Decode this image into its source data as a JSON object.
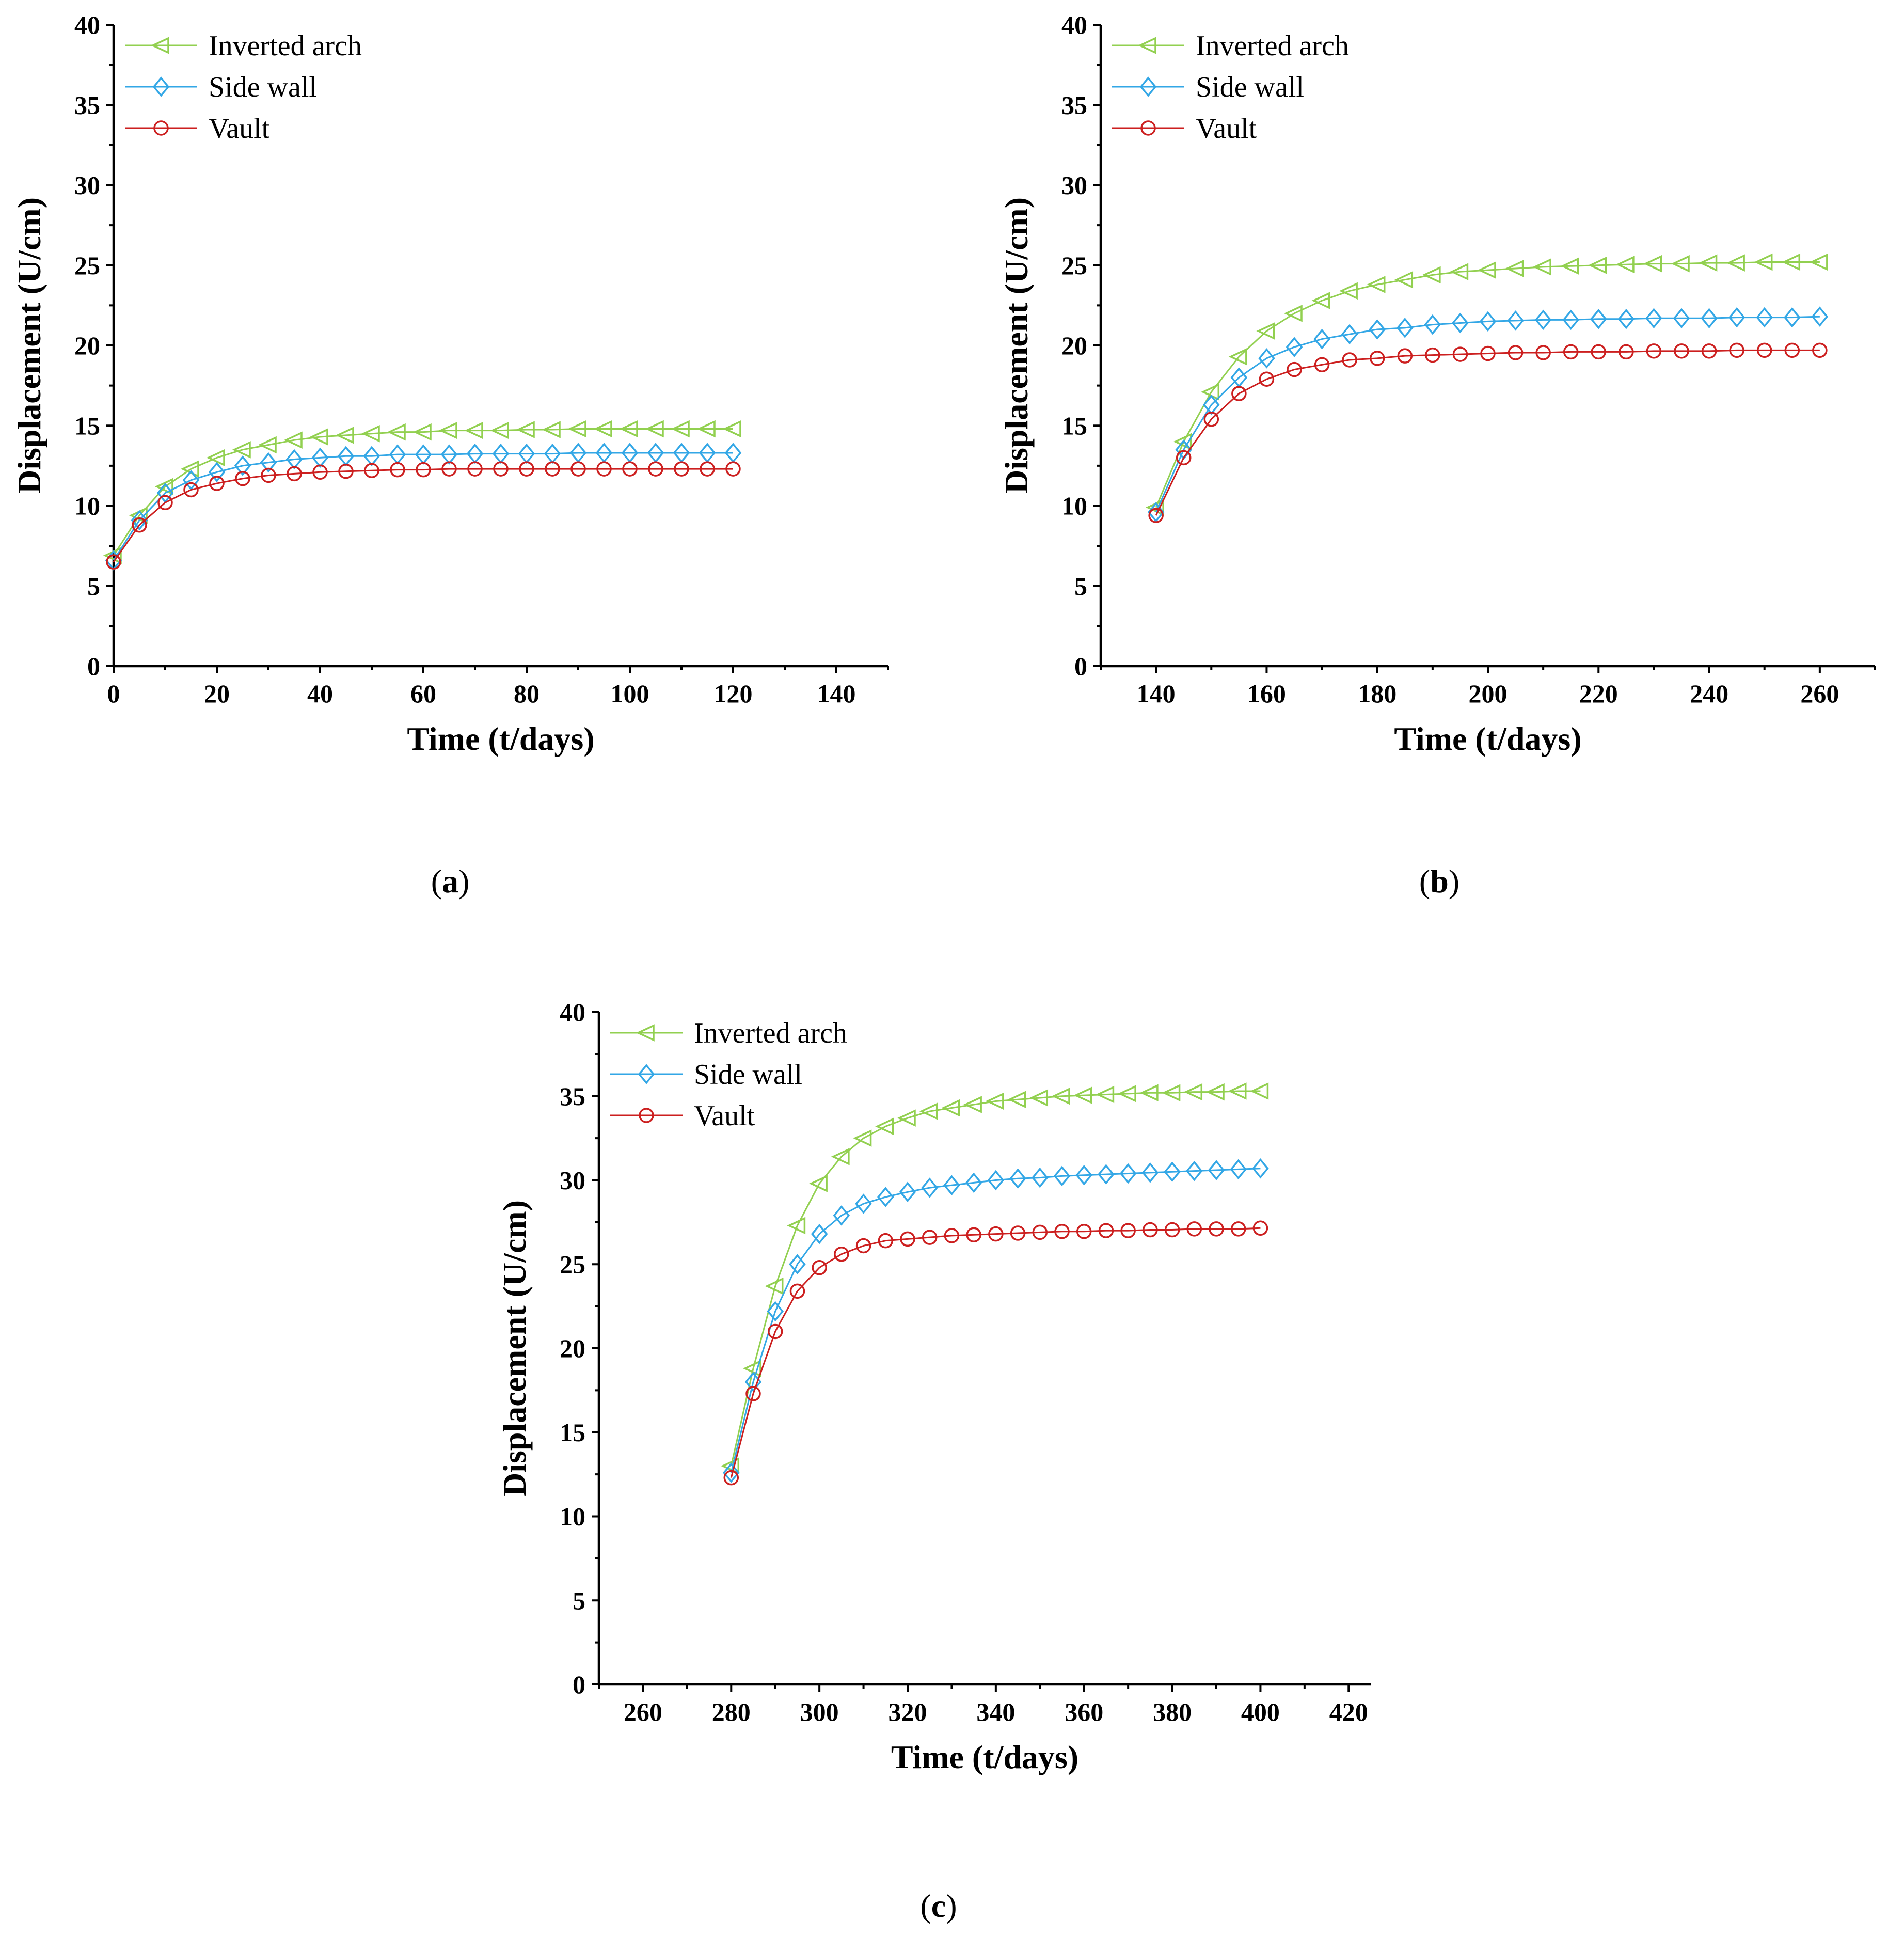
{
  "figure": {
    "labels": [
      "a",
      "b",
      "c"
    ]
  },
  "chart_data": [
    {
      "type": "line",
      "panel_label": "a",
      "xlabel": "Time (t/days)",
      "ylabel": "Displacement (U/cm)",
      "xlim": [
        0,
        150
      ],
      "ylim": [
        0,
        40
      ],
      "xticks": [
        "0",
        "20",
        "40",
        "60",
        "80",
        "100",
        "120",
        "140"
      ],
      "yticks": [
        "0",
        "5",
        "10",
        "15",
        "20",
        "25",
        "30",
        "35",
        "40"
      ],
      "legend_position": "top-left",
      "x": [
        0,
        5,
        10,
        15,
        20,
        25,
        30,
        35,
        40,
        45,
        50,
        55,
        60,
        65,
        70,
        75,
        80,
        85,
        90,
        95,
        100,
        105,
        110,
        115,
        120
      ],
      "series": [
        {
          "name": "Inverted arch",
          "color": "#92d050",
          "marker": "triangle-left",
          "values": [
            6.9,
            9.4,
            11.2,
            12.3,
            13.0,
            13.5,
            13.8,
            14.1,
            14.3,
            14.4,
            14.5,
            14.6,
            14.6,
            14.7,
            14.7,
            14.7,
            14.75,
            14.75,
            14.8,
            14.8,
            14.8,
            14.8,
            14.8,
            14.8,
            14.8
          ]
        },
        {
          "name": "Side wall",
          "color": "#33a7e6",
          "marker": "diamond",
          "values": [
            6.6,
            9.1,
            10.8,
            11.6,
            12.1,
            12.5,
            12.7,
            12.9,
            13.0,
            13.1,
            13.1,
            13.2,
            13.2,
            13.2,
            13.25,
            13.25,
            13.25,
            13.25,
            13.3,
            13.3,
            13.3,
            13.3,
            13.3,
            13.3,
            13.3
          ]
        },
        {
          "name": "Vault",
          "color": "#cc1f1f",
          "marker": "circle",
          "values": [
            6.5,
            8.8,
            10.2,
            11.0,
            11.4,
            11.7,
            11.9,
            12.0,
            12.1,
            12.15,
            12.2,
            12.25,
            12.25,
            12.3,
            12.3,
            12.3,
            12.3,
            12.3,
            12.3,
            12.3,
            12.3,
            12.3,
            12.3,
            12.3,
            12.3
          ]
        }
      ]
    },
    {
      "type": "line",
      "panel_label": "b",
      "xlabel": "Time (t/days)",
      "ylabel": "Displacement (U/cm)",
      "xlim": [
        130,
        270
      ],
      "ylim": [
        0,
        40
      ],
      "xticks": [
        "140",
        "160",
        "180",
        "200",
        "220",
        "240",
        "260"
      ],
      "yticks": [
        "0",
        "5",
        "10",
        "15",
        "20",
        "25",
        "30",
        "35",
        "40"
      ],
      "legend_position": "top-left",
      "x": [
        140,
        145,
        150,
        155,
        160,
        165,
        170,
        175,
        180,
        185,
        190,
        195,
        200,
        205,
        210,
        215,
        220,
        225,
        230,
        235,
        240,
        245,
        250,
        255,
        260
      ],
      "series": [
        {
          "name": "Inverted arch",
          "color": "#92d050",
          "marker": "triangle-left",
          "values": [
            9.9,
            14.0,
            17.1,
            19.3,
            20.9,
            22.0,
            22.8,
            23.4,
            23.8,
            24.1,
            24.4,
            24.6,
            24.7,
            24.8,
            24.9,
            24.95,
            25.0,
            25.05,
            25.1,
            25.1,
            25.15,
            25.15,
            25.2,
            25.2,
            25.2
          ]
        },
        {
          "name": "Side wall",
          "color": "#33a7e6",
          "marker": "diamond",
          "values": [
            9.6,
            13.5,
            16.3,
            18.0,
            19.2,
            19.9,
            20.4,
            20.7,
            21.0,
            21.1,
            21.3,
            21.4,
            21.5,
            21.55,
            21.6,
            21.6,
            21.65,
            21.65,
            21.7,
            21.7,
            21.7,
            21.75,
            21.75,
            21.75,
            21.8
          ]
        },
        {
          "name": "Vault",
          "color": "#cc1f1f",
          "marker": "circle",
          "values": [
            9.4,
            13.0,
            15.4,
            17.0,
            17.9,
            18.5,
            18.8,
            19.1,
            19.2,
            19.35,
            19.4,
            19.45,
            19.5,
            19.55,
            19.55,
            19.6,
            19.6,
            19.6,
            19.65,
            19.65,
            19.65,
            19.7,
            19.7,
            19.7,
            19.7
          ]
        }
      ]
    },
    {
      "type": "line",
      "panel_label": "c",
      "xlabel": "Time (t/days)",
      "ylabel": "Displacement (U/cm)",
      "xlim": [
        250,
        425
      ],
      "ylim": [
        0,
        40
      ],
      "xticks": [
        "260",
        "280",
        "300",
        "320",
        "340",
        "360",
        "380",
        "400",
        "420"
      ],
      "yticks": [
        "0",
        "5",
        "10",
        "15",
        "20",
        "25",
        "30",
        "35",
        "40"
      ],
      "legend_position": "top-left",
      "x": [
        280,
        285,
        290,
        295,
        300,
        305,
        310,
        315,
        320,
        325,
        330,
        335,
        340,
        345,
        350,
        355,
        360,
        365,
        370,
        375,
        380,
        385,
        390,
        395,
        400
      ],
      "series": [
        {
          "name": "Inverted arch",
          "color": "#92d050",
          "marker": "triangle-left",
          "values": [
            13.0,
            18.8,
            23.7,
            27.3,
            29.8,
            31.4,
            32.5,
            33.2,
            33.7,
            34.1,
            34.3,
            34.5,
            34.7,
            34.8,
            34.9,
            35.0,
            35.05,
            35.1,
            35.15,
            35.2,
            35.2,
            35.25,
            35.25,
            35.3,
            35.3
          ]
        },
        {
          "name": "Side wall",
          "color": "#33a7e6",
          "marker": "diamond",
          "values": [
            12.6,
            18.0,
            22.2,
            25.0,
            26.8,
            27.9,
            28.6,
            29.0,
            29.3,
            29.55,
            29.7,
            29.85,
            30.0,
            30.1,
            30.15,
            30.25,
            30.3,
            30.35,
            30.4,
            30.45,
            30.5,
            30.55,
            30.6,
            30.65,
            30.7
          ]
        },
        {
          "name": "Vault",
          "color": "#cc1f1f",
          "marker": "circle",
          "values": [
            12.3,
            17.3,
            21.0,
            23.4,
            24.8,
            25.6,
            26.1,
            26.4,
            26.5,
            26.6,
            26.7,
            26.75,
            26.8,
            26.85,
            26.9,
            26.95,
            26.95,
            27.0,
            27.0,
            27.05,
            27.05,
            27.1,
            27.1,
            27.1,
            27.15
          ]
        }
      ]
    }
  ]
}
